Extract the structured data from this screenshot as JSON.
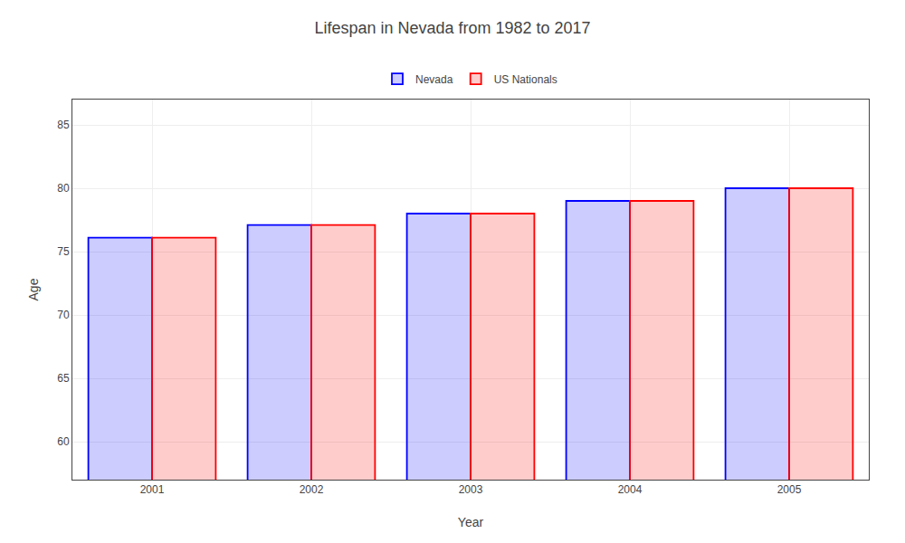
{
  "chart_data": {
    "type": "bar",
    "title": "Lifespan in Nevada from 1982 to 2017",
    "xlabel": "Year",
    "ylabel": "Age",
    "categories": [
      "2001",
      "2002",
      "2003",
      "2004",
      "2005"
    ],
    "series": [
      {
        "name": "Nevada",
        "color": "#0000ff",
        "values": [
          76.1,
          77.1,
          78.0,
          79.0,
          80.0
        ]
      },
      {
        "name": "US Nationals",
        "color": "#ff0000",
        "values": [
          76.1,
          77.1,
          78.0,
          79.0,
          80.0
        ]
      }
    ],
    "ylim": [
      57,
      87
    ],
    "yticks": [
      60,
      65,
      70,
      75,
      80,
      85
    ],
    "grid": true,
    "legend": "top"
  }
}
